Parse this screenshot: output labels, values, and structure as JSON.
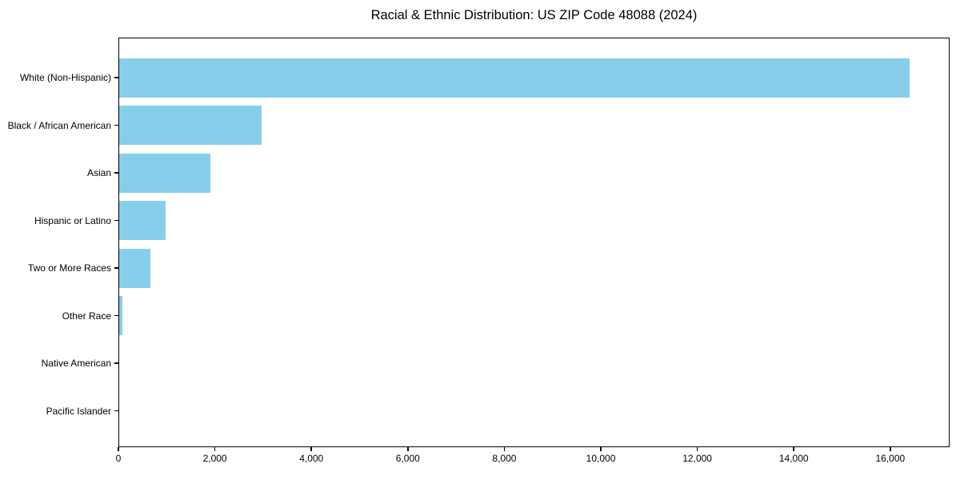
{
  "figure": {
    "background_color": "#ffffff",
    "text_color": "#000000"
  },
  "chart_data": {
    "type": "bar",
    "orientation": "horizontal",
    "title": "Racial & Ethnic Distribution: US ZIP Code 48088 (2024)",
    "categories": [
      "White (Non-Hispanic)",
      "Black / African American",
      "Asian",
      "Hispanic or Latino",
      "Two or More Races",
      "Other Race",
      "Native American",
      "Pacific Islander"
    ],
    "values": [
      16400,
      2970,
      1910,
      980,
      660,
      80,
      15,
      5
    ],
    "xlabel": "",
    "ylabel": "",
    "xlim": [
      0,
      17230
    ],
    "x_ticks": [
      0,
      2000,
      4000,
      6000,
      8000,
      10000,
      12000,
      14000,
      16000
    ],
    "x_tick_labels": [
      "0",
      "2,000",
      "4,000",
      "6,000",
      "8,000",
      "10,000",
      "12,000",
      "14,000",
      "16,000"
    ],
    "bar_color": "#87CEEB",
    "axis_color": "#000000",
    "grid": false,
    "legend": false
  }
}
